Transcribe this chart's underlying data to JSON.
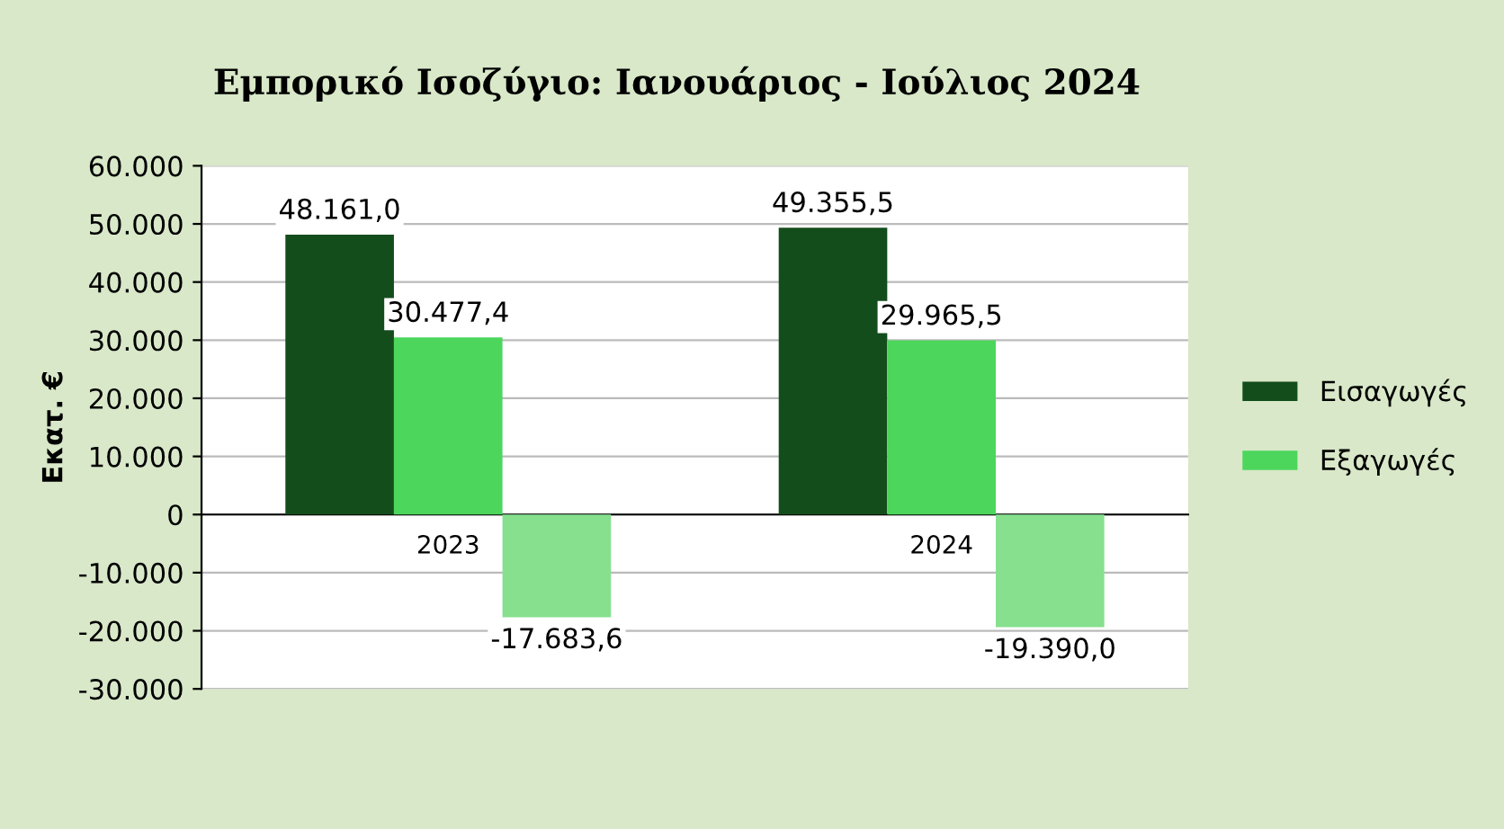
{
  "chart_data": {
    "type": "bar",
    "title": "Εμπορικό Ισοζύγιο: Ιανουάριος - Ιούλιος 2024",
    "ylabel": "Εκατ. €",
    "categories": [
      "2023",
      "2024"
    ],
    "series": [
      {
        "name": "Εισαγωγές",
        "color": "#144d1c",
        "values": [
          48161.0,
          49355.5
        ],
        "value_labels": [
          "48.161,0",
          "49.355,5"
        ]
      },
      {
        "name": "Εξαγωγές",
        "color": "#4cd65c",
        "values": [
          30477.4,
          29965.5
        ],
        "value_labels": [
          "30.477,4",
          "29.965,5"
        ]
      },
      {
        "color": "#86e08e",
        "values": [
          -17683.6,
          -19390.0
        ],
        "value_labels": [
          "-17.683,6",
          "-19.390,0"
        ]
      }
    ],
    "ylim": [
      -30000,
      60000
    ],
    "yticks": [
      {
        "value": -30000,
        "label": "-30.000"
      },
      {
        "value": -20000,
        "label": "-20.000"
      },
      {
        "value": -10000,
        "label": "-10.000"
      },
      0,
      {
        "value": 10000,
        "label": "10.000"
      },
      {
        "value": 20000,
        "label": "20.000"
      },
      {
        "value": 30000,
        "label": "30.000"
      },
      {
        "value": 40000,
        "label": "40.000"
      },
      {
        "value": 50000,
        "label": "50.000"
      },
      {
        "value": 60000,
        "label": "60.000"
      }
    ],
    "grid": "y",
    "legend": "right"
  }
}
